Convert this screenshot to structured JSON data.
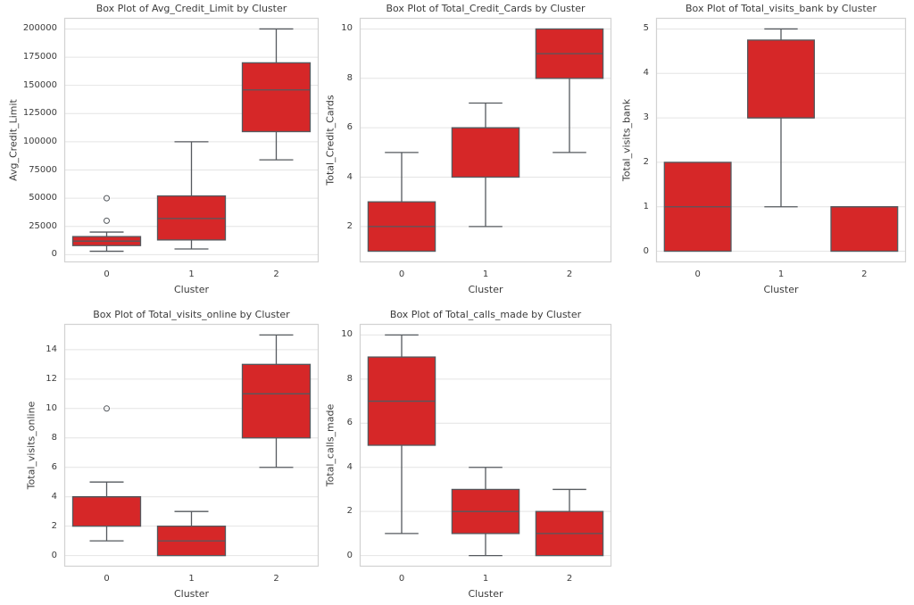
{
  "figure": {
    "background": "#ffffff"
  },
  "style": {
    "box_fill": "#d62728",
    "line_color": "#55595e",
    "grid_color": "#e4e4e4",
    "spine_color": "#d2d2d2",
    "text_color": "#3b3b3b",
    "outlier_radius": 3
  },
  "chart_data": [
    {
      "type": "box",
      "title": "Box Plot of Avg_Credit_Limit by Cluster",
      "xlabel": "Cluster",
      "ylabel": "Avg_Credit_Limit",
      "categories": [
        "0",
        "1",
        "2"
      ],
      "yticks": [
        0,
        25000,
        50000,
        75000,
        100000,
        125000,
        150000,
        175000,
        200000
      ],
      "ylim": [
        -6850,
        209850
      ],
      "grid": true,
      "box_width": 0.8,
      "boxes": [
        {
          "category": "0",
          "whisker_low": 3000,
          "q1": 8000,
          "median": 12000,
          "q3": 16000,
          "whisker_high": 20000,
          "outliers": [
            30000,
            50000
          ]
        },
        {
          "category": "1",
          "whisker_low": 5000,
          "q1": 13000,
          "median": 32000,
          "q3": 52000,
          "whisker_high": 100000,
          "outliers": []
        },
        {
          "category": "2",
          "whisker_low": 84000,
          "q1": 109000,
          "median": 146000,
          "q3": 170000,
          "whisker_high": 200000,
          "outliers": []
        }
      ]
    },
    {
      "type": "box",
      "title": "Box Plot of Total_Credit_Cards by Cluster",
      "xlabel": "Cluster",
      "ylabel": "Total_Credit_Cards",
      "categories": [
        "0",
        "1",
        "2"
      ],
      "yticks": [
        2,
        4,
        6,
        8,
        10
      ],
      "ylim": [
        0.55,
        10.45
      ],
      "grid": true,
      "box_width": 0.8,
      "boxes": [
        {
          "category": "0",
          "whisker_low": 1,
          "q1": 1,
          "median": 2,
          "q3": 3,
          "whisker_high": 5,
          "outliers": []
        },
        {
          "category": "1",
          "whisker_low": 2,
          "q1": 4,
          "median": 6,
          "q3": 6,
          "whisker_high": 7,
          "outliers": []
        },
        {
          "category": "2",
          "whisker_low": 5,
          "q1": 8,
          "median": 9,
          "q3": 10,
          "whisker_high": 10,
          "outliers": []
        }
      ]
    },
    {
      "type": "box",
      "title": "Box Plot of Total_visits_bank by Cluster",
      "xlabel": "Cluster",
      "ylabel": "Total_visits_bank",
      "categories": [
        "0",
        "1",
        "2"
      ],
      "yticks": [
        0,
        1,
        2,
        3,
        4,
        5
      ],
      "ylim": [
        -0.25,
        5.25
      ],
      "grid": true,
      "box_width": 0.8,
      "boxes": [
        {
          "category": "0",
          "whisker_low": 0,
          "q1": 0,
          "median": 1,
          "q3": 2,
          "whisker_high": 2,
          "outliers": []
        },
        {
          "category": "1",
          "whisker_low": 1,
          "q1": 3,
          "median": 3,
          "q3": 4.75,
          "whisker_high": 5,
          "outliers": []
        },
        {
          "category": "2",
          "whisker_low": 0,
          "q1": 0,
          "median": 1,
          "q3": 1,
          "whisker_high": 1,
          "outliers": []
        }
      ]
    },
    {
      "type": "box",
      "title": "Box Plot of Total_visits_online by Cluster",
      "xlabel": "Cluster",
      "ylabel": "Total_visits_online",
      "categories": [
        "0",
        "1",
        "2"
      ],
      "yticks": [
        0,
        2,
        4,
        6,
        8,
        10,
        12,
        14
      ],
      "ylim": [
        -0.75,
        15.75
      ],
      "grid": true,
      "box_width": 0.8,
      "boxes": [
        {
          "category": "0",
          "whisker_low": 1,
          "q1": 2,
          "median": 4,
          "q3": 4,
          "whisker_high": 5,
          "outliers": [
            10
          ]
        },
        {
          "category": "1",
          "whisker_low": 0,
          "q1": 0,
          "median": 1,
          "q3": 2,
          "whisker_high": 3,
          "outliers": []
        },
        {
          "category": "2",
          "whisker_low": 6,
          "q1": 8,
          "median": 11,
          "q3": 13,
          "whisker_high": 15,
          "outliers": []
        }
      ]
    },
    {
      "type": "box",
      "title": "Box Plot of Total_calls_made by Cluster",
      "xlabel": "Cluster",
      "ylabel": "Total_calls_made",
      "categories": [
        "0",
        "1",
        "2"
      ],
      "yticks": [
        0,
        2,
        4,
        6,
        8,
        10
      ],
      "ylim": [
        -0.5,
        10.5
      ],
      "grid": true,
      "box_width": 0.8,
      "boxes": [
        {
          "category": "0",
          "whisker_low": 1,
          "q1": 5,
          "median": 7,
          "q3": 9,
          "whisker_high": 10,
          "outliers": []
        },
        {
          "category": "1",
          "whisker_low": 0,
          "q1": 1,
          "median": 2,
          "q3": 3,
          "whisker_high": 4,
          "outliers": []
        },
        {
          "category": "2",
          "whisker_low": 0,
          "q1": 0,
          "median": 1,
          "q3": 2,
          "whisker_high": 3,
          "outliers": []
        }
      ]
    }
  ]
}
